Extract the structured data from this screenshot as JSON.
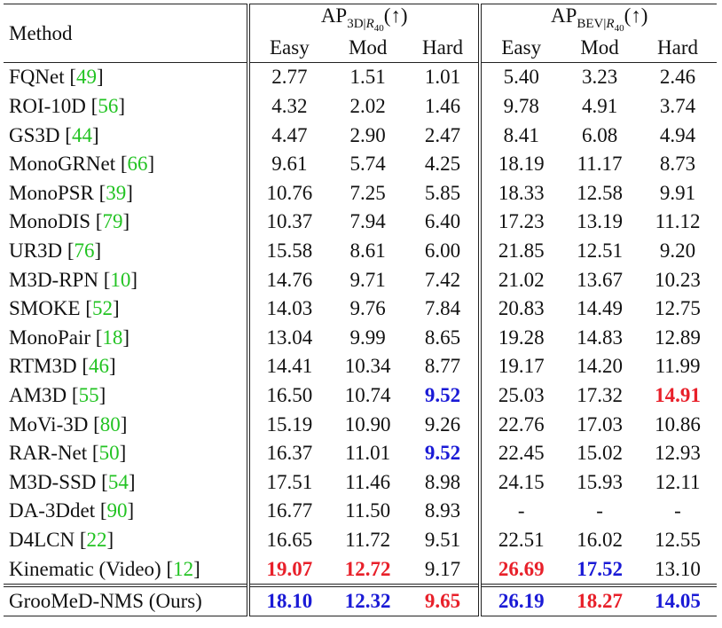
{
  "table": {
    "corner": "Method",
    "groups": [
      {
        "base": "AP",
        "sub": "3D|",
        "sub_italic": "R",
        "sub_sub": "40",
        "arrow": "(↑)"
      },
      {
        "base": "AP",
        "sub": "BEV|",
        "sub_italic": "R",
        "sub_sub": "40",
        "arrow": "(↑)"
      }
    ],
    "subheaders": [
      "Easy",
      "Mod",
      "Hard",
      "Easy",
      "Mod",
      "Hard"
    ],
    "cite_brackets": [
      "[",
      "]"
    ],
    "rows": [
      {
        "method": "FQNet",
        "cite": "49",
        "values": [
          "2.77",
          "1.51",
          "1.01",
          "5.40",
          "3.23",
          "2.46"
        ]
      },
      {
        "method": "ROI-10D",
        "cite": "56",
        "values": [
          "4.32",
          "2.02",
          "1.46",
          "9.78",
          "4.91",
          "3.74"
        ]
      },
      {
        "method": "GS3D",
        "cite": "44",
        "values": [
          "4.47",
          "2.90",
          "2.47",
          "8.41",
          "6.08",
          "4.94"
        ]
      },
      {
        "method": "MonoGRNet",
        "cite": "66",
        "values": [
          "9.61",
          "5.74",
          "4.25",
          "18.19",
          "11.17",
          "8.73"
        ]
      },
      {
        "method": "MonoPSR",
        "cite": "39",
        "values": [
          "10.76",
          "7.25",
          "5.85",
          "18.33",
          "12.58",
          "9.91"
        ]
      },
      {
        "method": "MonoDIS",
        "cite": "79",
        "values": [
          "10.37",
          "7.94",
          "6.40",
          "17.23",
          "13.19",
          "11.12"
        ]
      },
      {
        "method": "UR3D",
        "cite": "76",
        "values": [
          "15.58",
          "8.61",
          "6.00",
          "21.85",
          "12.51",
          "9.20"
        ]
      },
      {
        "method": "M3D-RPN",
        "cite": "10",
        "values": [
          "14.76",
          "9.71",
          "7.42",
          "21.02",
          "13.67",
          "10.23"
        ]
      },
      {
        "method": "SMOKE",
        "cite": "52",
        "values": [
          "14.03",
          "9.76",
          "7.84",
          "20.83",
          "14.49",
          "12.75"
        ]
      },
      {
        "method": "MonoPair",
        "cite": "18",
        "values": [
          "13.04",
          "9.99",
          "8.65",
          "19.28",
          "14.83",
          "12.89"
        ]
      },
      {
        "method": "RTM3D",
        "cite": "46",
        "values": [
          "14.41",
          "10.34",
          "8.77",
          "19.17",
          "14.20",
          "11.99"
        ]
      },
      {
        "method": "AM3D",
        "cite": "55",
        "values": [
          "16.50",
          "10.74",
          {
            "text": "9.52",
            "color": "#1a1ad6"
          },
          "25.03",
          "17.32",
          {
            "text": "14.91",
            "color": "#e8202a"
          }
        ]
      },
      {
        "method": "MoVi-3D",
        "cite": "80",
        "values": [
          "15.19",
          "10.90",
          "9.26",
          "22.76",
          "17.03",
          "10.86"
        ]
      },
      {
        "method": "RAR-Net",
        "cite": "50",
        "values": [
          "16.37",
          "11.01",
          {
            "text": "9.52",
            "color": "#1a1ad6"
          },
          "22.45",
          "15.02",
          "12.93"
        ]
      },
      {
        "method": "M3D-SSD",
        "cite": "54",
        "values": [
          "17.51",
          "11.46",
          "8.98",
          "24.15",
          "15.93",
          "12.11"
        ]
      },
      {
        "method": "DA-3Ddet",
        "cite": "90",
        "values": [
          "16.77",
          "11.50",
          "8.93",
          "-",
          "-",
          "-"
        ]
      },
      {
        "method": "D4LCN",
        "cite": "22",
        "values": [
          "16.65",
          "11.72",
          "9.51",
          "22.51",
          "16.02",
          "12.55"
        ]
      },
      {
        "method": "Kinematic (Video)",
        "cite": "12",
        "values": [
          {
            "text": "19.07",
            "color": "#e8202a"
          },
          {
            "text": "12.72",
            "color": "#e8202a"
          },
          "9.17",
          {
            "text": "26.69",
            "color": "#e8202a"
          },
          {
            "text": "17.52",
            "color": "#1a1ad6"
          },
          "13.10"
        ]
      }
    ],
    "final_row": {
      "method": "GrooMeD-NMS (Ours)",
      "values": [
        {
          "text": "18.10",
          "color": "#1a1ad6"
        },
        {
          "text": "12.32",
          "color": "#1a1ad6"
        },
        {
          "text": "9.65",
          "color": "#e8202a"
        },
        {
          "text": "26.19",
          "color": "#1a1ad6"
        },
        {
          "text": "18.27",
          "color": "#e8202a"
        },
        {
          "text": "14.05",
          "color": "#1a1ad6"
        }
      ]
    },
    "cite_color": "#22c322"
  }
}
